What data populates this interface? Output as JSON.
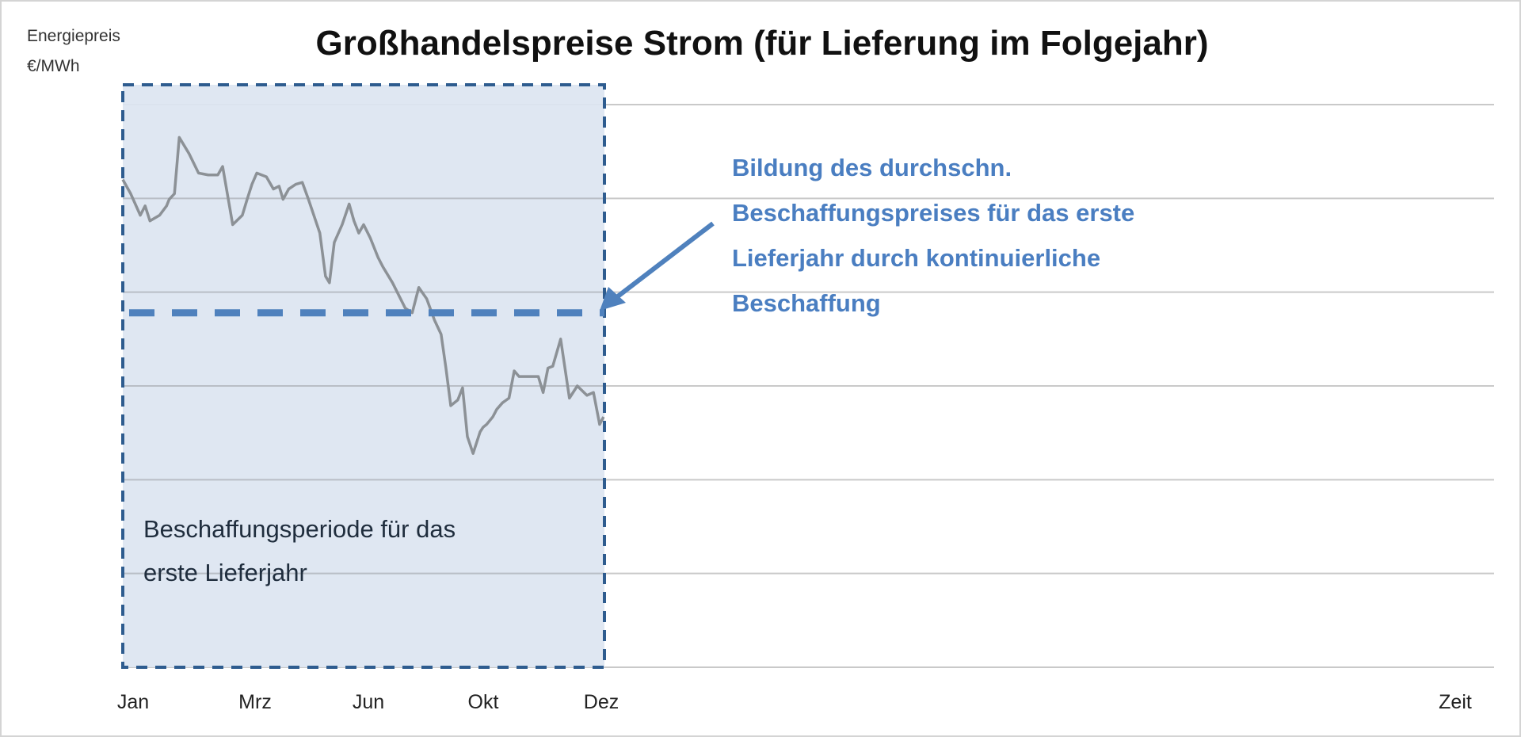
{
  "chart_data": {
    "type": "line",
    "title": "Großhandelspreise Strom (für Lieferung im Folgejahr)",
    "ylabel": [
      "Energiepreis",
      "€/MWh"
    ],
    "xlabel": "Zeit",
    "x_tick_labels": [
      {
        "label": "Jan",
        "month": 0
      },
      {
        "label": "Mrz",
        "month": 2.8
      },
      {
        "label": "Jun",
        "month": 5.6
      },
      {
        "label": "Okt",
        "month": 8.4
      },
      {
        "label": "Dez",
        "month": 11
      }
    ],
    "xlim": [
      0,
      40
    ],
    "ylim": [
      0,
      6
    ],
    "grid": true,
    "series": [
      {
        "name": "Preis",
        "color": "#8c9196",
        "x": [
          0,
          0.18,
          0.4,
          0.51,
          0.62,
          0.84,
          1.0,
          1.06,
          1.18,
          1.29,
          1.51,
          1.73,
          1.95,
          2.17,
          2.28,
          2.51,
          2.73,
          2.84,
          2.95,
          3.06,
          3.28,
          3.44,
          3.57,
          3.66,
          3.79,
          3.95,
          4.1,
          4.24,
          4.5,
          4.63,
          4.72,
          4.83,
          5.01,
          5.17,
          5.28,
          5.39,
          5.5,
          5.65,
          5.83,
          5.94,
          6.16,
          6.45,
          6.61,
          6.76,
          6.94,
          7.12,
          7.27,
          7.38,
          7.49,
          7.65,
          7.76,
          7.87,
          8.0,
          8.16,
          8.23,
          8.31,
          8.45,
          8.54,
          8.67,
          8.82,
          8.94,
          9.05,
          9.27,
          9.49,
          9.6,
          9.71,
          9.82,
          10.0,
          10.2,
          10.38,
          10.6,
          10.75,
          10.89,
          10.98
        ],
        "y": [
          5.2,
          5.05,
          4.82,
          4.92,
          4.76,
          4.82,
          4.92,
          4.99,
          5.05,
          5.65,
          5.48,
          5.27,
          5.25,
          5.25,
          5.34,
          4.72,
          4.82,
          4.99,
          5.15,
          5.27,
          5.23,
          5.1,
          5.13,
          4.99,
          5.1,
          5.15,
          5.17,
          4.99,
          4.63,
          4.17,
          4.1,
          4.53,
          4.72,
          4.94,
          4.76,
          4.63,
          4.72,
          4.58,
          4.37,
          4.27,
          4.1,
          3.83,
          3.78,
          4.05,
          3.93,
          3.7,
          3.55,
          3.19,
          2.79,
          2.85,
          2.98,
          2.46,
          2.28,
          2.51,
          2.56,
          2.59,
          2.67,
          2.75,
          2.82,
          2.87,
          3.16,
          3.1,
          3.1,
          3.1,
          2.93,
          3.19,
          3.21,
          3.5,
          2.87,
          3.0,
          2.9,
          2.93,
          2.59,
          2.67
        ]
      }
    ],
    "average_line": {
      "value": 3.78,
      "from": 0,
      "to": 11,
      "color": "#4f81bd"
    },
    "procurement_period": {
      "from": 0,
      "to": 11,
      "fill": "#dce5f1",
      "border": "#2e5c8f"
    },
    "annotations": {
      "average_note": [
        "Bildung des durchschn.",
        "Beschaffungspreises für das erste",
        "Lieferjahr durch kontinuierliche",
        "Beschaffung"
      ],
      "period_note": [
        "Beschaffungsperiode für das",
        "erste Lieferjahr"
      ]
    }
  }
}
